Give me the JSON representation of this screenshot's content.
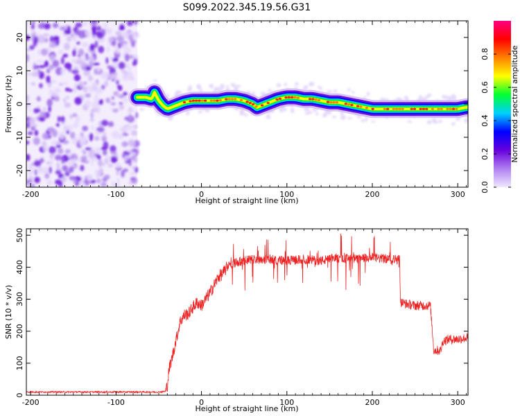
{
  "title": "S099.2022.345.19.56.G31",
  "chart_data": [
    {
      "type": "heatmap",
      "xlabel": "Height of straight line (km)",
      "ylabel": "Frequency (Hz)",
      "xlim": [
        -205,
        312
      ],
      "ylim": [
        -25,
        25
      ],
      "xticks": [
        -200,
        -100,
        0,
        100,
        200,
        300
      ],
      "yticks": [
        -20,
        -10,
        0,
        10,
        20
      ],
      "noise_region_x": [
        -205,
        -75
      ],
      "ridge": {
        "x": [
          -75,
          -65,
          -58,
          -55,
          -50,
          -45,
          -40,
          -30,
          -20,
          -10,
          0,
          10,
          20,
          30,
          40,
          50,
          60,
          65,
          70,
          80,
          90,
          100,
          110,
          120,
          130,
          140,
          150,
          160,
          170,
          180,
          190,
          200,
          210,
          220,
          230,
          240,
          250,
          260,
          270,
          280,
          290,
          300,
          310
        ],
        "y": [
          2,
          2,
          1.5,
          3.5,
          1,
          -0.5,
          -1.5,
          -0.5,
          0.5,
          1,
          1,
          1,
          1,
          1.5,
          1.5,
          1,
          0,
          -1,
          -0.5,
          0.5,
          1.5,
          2,
          2,
          1.5,
          1.5,
          1,
          0.5,
          0.5,
          0,
          -0.5,
          -1,
          -1.5,
          -1.5,
          -1.5,
          -1.5,
          -1.5,
          -1.5,
          -1.5,
          -1.5,
          -1.5,
          -1.5,
          -1.5,
          -1
        ]
      },
      "colorbar": {
        "label": "Normalized spectral amplitude",
        "range": [
          0,
          1
        ],
        "ticks": [
          "0.0",
          "0.2",
          "0.4",
          "0.6",
          "0.8"
        ],
        "colors": [
          "#f0e8ff",
          "#b080f0",
          "#6600dd",
          "#0000ff",
          "#00d0ff",
          "#00ff30",
          "#ffff00",
          "#ff8000",
          "#ff0000",
          "#ff0080"
        ]
      }
    },
    {
      "type": "line",
      "xlabel": "Height of straight line (km)",
      "ylabel": "SNR (10 * v/v)",
      "xlim": [
        -205,
        312
      ],
      "ylim": [
        0,
        520
      ],
      "xticks": [
        -200,
        -100,
        0,
        100,
        200,
        300
      ],
      "yticks": [
        0,
        100,
        200,
        300,
        400,
        500
      ],
      "color": "#ee2222",
      "series": [
        {
          "x": [
            -205,
            -100,
            -50,
            -42,
            -40,
            -38,
            -35,
            -30,
            -25,
            -20,
            -15,
            -10,
            -5,
            0,
            5,
            10,
            15,
            20,
            25,
            30,
            40,
            50,
            60,
            80,
            100,
            120,
            140,
            160,
            180,
            200,
            220,
            232,
            233,
            240,
            250,
            260,
            268,
            270,
            272,
            280,
            283,
            290,
            300,
            312
          ],
          "y": [
            10,
            10,
            10,
            12,
            30,
            80,
            110,
            170,
            230,
            250,
            255,
            275,
            290,
            280,
            300,
            320,
            345,
            370,
            380,
            400,
            415,
            420,
            425,
            425,
            420,
            425,
            420,
            430,
            425,
            430,
            425,
            425,
            290,
            285,
            280,
            280,
            280,
            210,
            140,
            140,
            170,
            175,
            175,
            180
          ]
        }
      ]
    }
  ]
}
